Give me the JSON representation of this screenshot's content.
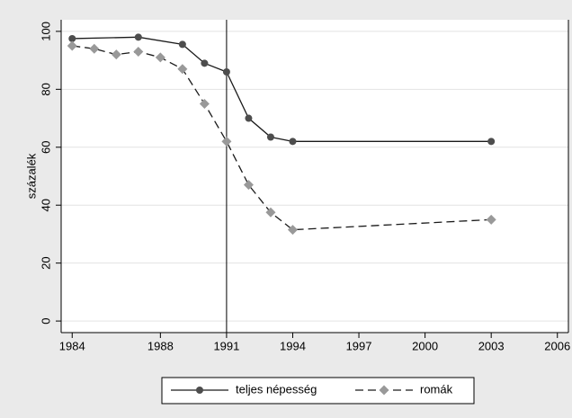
{
  "chart_data": {
    "type": "line",
    "y_label": "százalék",
    "xlim": [
      1983.5,
      2006.5
    ],
    "xticks": [
      1984,
      1988,
      1991,
      1994,
      1997,
      2000,
      2003,
      2006
    ],
    "ylim": [
      -4,
      104
    ],
    "yticks": [
      0,
      20,
      40,
      60,
      80,
      100
    ],
    "grid": true,
    "xline": 1991,
    "legend": "bottom",
    "series": [
      {
        "name": "teljes népesség",
        "color": "#1a1a1a",
        "marker_color": "#4d4d4d",
        "marker": "circle",
        "dash": "none",
        "x": [
          1984,
          1987,
          1989,
          1990,
          1991,
          1992,
          1993,
          1994,
          2003
        ],
        "values": [
          97.5,
          98,
          95.5,
          89,
          86,
          70,
          63.5,
          62,
          62
        ]
      },
      {
        "name": "romák",
        "color": "#1a1a1a",
        "marker_color": "#999999",
        "marker": "diamond",
        "dash": "9,5",
        "x": [
          1984,
          1985,
          1986,
          1987,
          1988,
          1989,
          1990,
          1991,
          1992,
          1993,
          1994,
          2003
        ],
        "values": [
          95,
          94,
          92,
          93,
          91,
          87,
          75,
          62,
          47,
          37.5,
          31.5,
          35
        ]
      }
    ]
  }
}
